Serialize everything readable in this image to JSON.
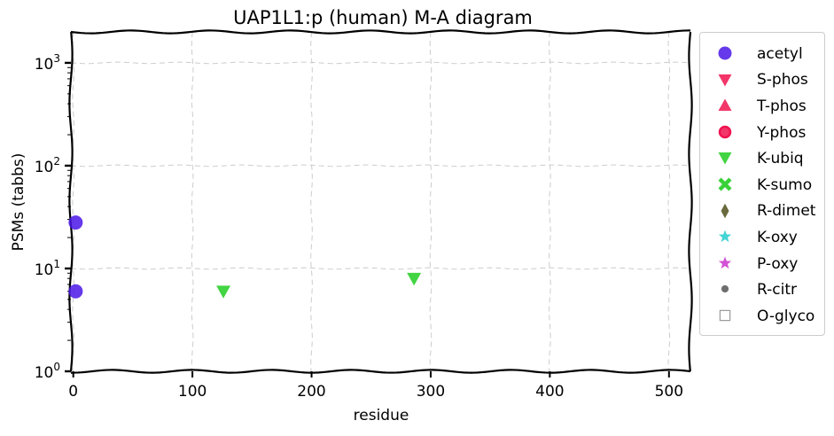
{
  "chart_data": {
    "type": "scatter",
    "title": "UAP1L1:p (human) M-A diagram",
    "xlabel": "residue",
    "ylabel": "PSMs (tabbs)",
    "xlim": [
      -2,
      518
    ],
    "ylim": [
      1,
      2000
    ],
    "yscale": "log",
    "grid": true,
    "x_ticks": [
      "0",
      "100",
      "200",
      "300",
      "400",
      "500"
    ],
    "x_tick_values": [
      0,
      100,
      200,
      300,
      400,
      500
    ],
    "y_ticks": [
      {
        "base": "10",
        "exp": "0",
        "value": 1
      },
      {
        "base": "10",
        "exp": "1",
        "value": 10
      },
      {
        "base": "10",
        "exp": "2",
        "value": 100
      },
      {
        "base": "10",
        "exp": "3",
        "value": 1000
      }
    ],
    "legend_position": "outside-right",
    "series": [
      {
        "name": "acetyl",
        "marker": "circle",
        "color": "#4b16e8",
        "points": [
          [
            2,
            28
          ],
          [
            2,
            6
          ]
        ]
      },
      {
        "name": "S-phos",
        "marker": "triangle-down",
        "color": "#f0134f",
        "points": []
      },
      {
        "name": "T-phos",
        "marker": "triangle-up",
        "color": "#f0134f",
        "points": []
      },
      {
        "name": "Y-phos",
        "marker": "circle-ring",
        "color": "#f0134f",
        "points": []
      },
      {
        "name": "K-ubiq",
        "marker": "triangle-down",
        "color": "#22cc22",
        "points": [
          [
            126,
            6
          ],
          [
            286,
            8
          ]
        ]
      },
      {
        "name": "K-sumo",
        "marker": "x-filled",
        "color": "#22cc22",
        "points": []
      },
      {
        "name": "R-dimet",
        "marker": "diamond",
        "color": "#5a5a28",
        "points": []
      },
      {
        "name": "K-oxy",
        "marker": "star",
        "color": "#22cccc",
        "points": []
      },
      {
        "name": "P-oxy",
        "marker": "star",
        "color": "#cc33cc",
        "points": []
      },
      {
        "name": "R-citr",
        "marker": "small-circle",
        "color": "#555555",
        "points": []
      },
      {
        "name": "O-glyco",
        "marker": "square-open",
        "color": "#999999",
        "points": []
      }
    ]
  }
}
